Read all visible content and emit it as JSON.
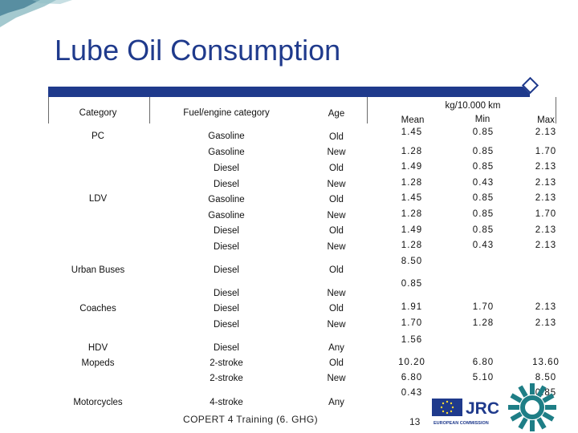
{
  "title": "Lube Oil Consumption",
  "headers": {
    "category": "Category",
    "fuel": "Fuel/engine category",
    "age": "Age",
    "unit": "kg/10.000 km",
    "mean": "Mean",
    "min": "Min",
    "max": "Max"
  },
  "rows": [
    {
      "category": "PC",
      "fuel": "Gasoline",
      "age": "Old",
      "mean": "1.45",
      "min": "0.85",
      "max": "2.13"
    },
    {
      "category": "",
      "fuel": "Gasoline",
      "age": "New",
      "mean": "1.28",
      "min": "0.85",
      "max": "1.70"
    },
    {
      "category": "",
      "fuel": "Diesel",
      "age": "Old",
      "mean": "1.49",
      "min": "0.85",
      "max": "2.13"
    },
    {
      "category": "",
      "fuel": "Diesel",
      "age": "New",
      "mean": "1.28",
      "min": "0.43",
      "max": "2.13"
    },
    {
      "category": "LDV",
      "fuel": "Gasoline",
      "age": "Old",
      "mean": "1.45",
      "min": "0.85",
      "max": "2.13"
    },
    {
      "category": "",
      "fuel": "Gasoline",
      "age": "New",
      "mean": "1.28",
      "min": "0.85",
      "max": "1.70"
    },
    {
      "category": "",
      "fuel": "Diesel",
      "age": "Old",
      "mean": "1.49",
      "min": "0.85",
      "max": "2.13"
    },
    {
      "category": "",
      "fuel": "Diesel",
      "age": "New",
      "mean": "1.28",
      "min": "0.43",
      "max": "2.13"
    },
    {
      "category": "Urban Buses",
      "fuel": "Diesel",
      "age": "Old",
      "mean": "8.50",
      "min": "",
      "max": ""
    },
    {
      "category": "",
      "fuel": "Diesel",
      "age": "New",
      "mean": "0.85",
      "min": "",
      "max": ""
    },
    {
      "category": "Coaches",
      "fuel": "Diesel",
      "age": "Old",
      "mean": "1.91",
      "min": "1.70",
      "max": "2.13"
    },
    {
      "category": "",
      "fuel": "Diesel",
      "age": "New",
      "mean": "1.70",
      "min": "1.28",
      "max": "2.13"
    },
    {
      "category": "HDV",
      "fuel": "Diesel",
      "age": "Any",
      "mean": "1.56",
      "min": "",
      "max": ""
    },
    {
      "category": "Mopeds",
      "fuel": "2-stroke",
      "age": "Old",
      "mean": "10.20",
      "min": "6.80",
      "max": "13.60"
    },
    {
      "category": "",
      "fuel": "2-stroke",
      "age": "New",
      "mean": "6.80",
      "min": "5.10",
      "max": "8.50"
    },
    {
      "category": "Motorcycles",
      "fuel": "4-stroke",
      "age": "Any",
      "mean": "0.43",
      "min": "",
      "max": "0.85"
    }
  ],
  "footer": "COPERT 4 Training (6. GHG)",
  "page_number": "13",
  "logo": {
    "name": "JRC",
    "subtitle": "EUROPEAN COMMISSION"
  },
  "colors": {
    "accent": "#1f3a8c",
    "logo_teal": "#1e7e86"
  }
}
